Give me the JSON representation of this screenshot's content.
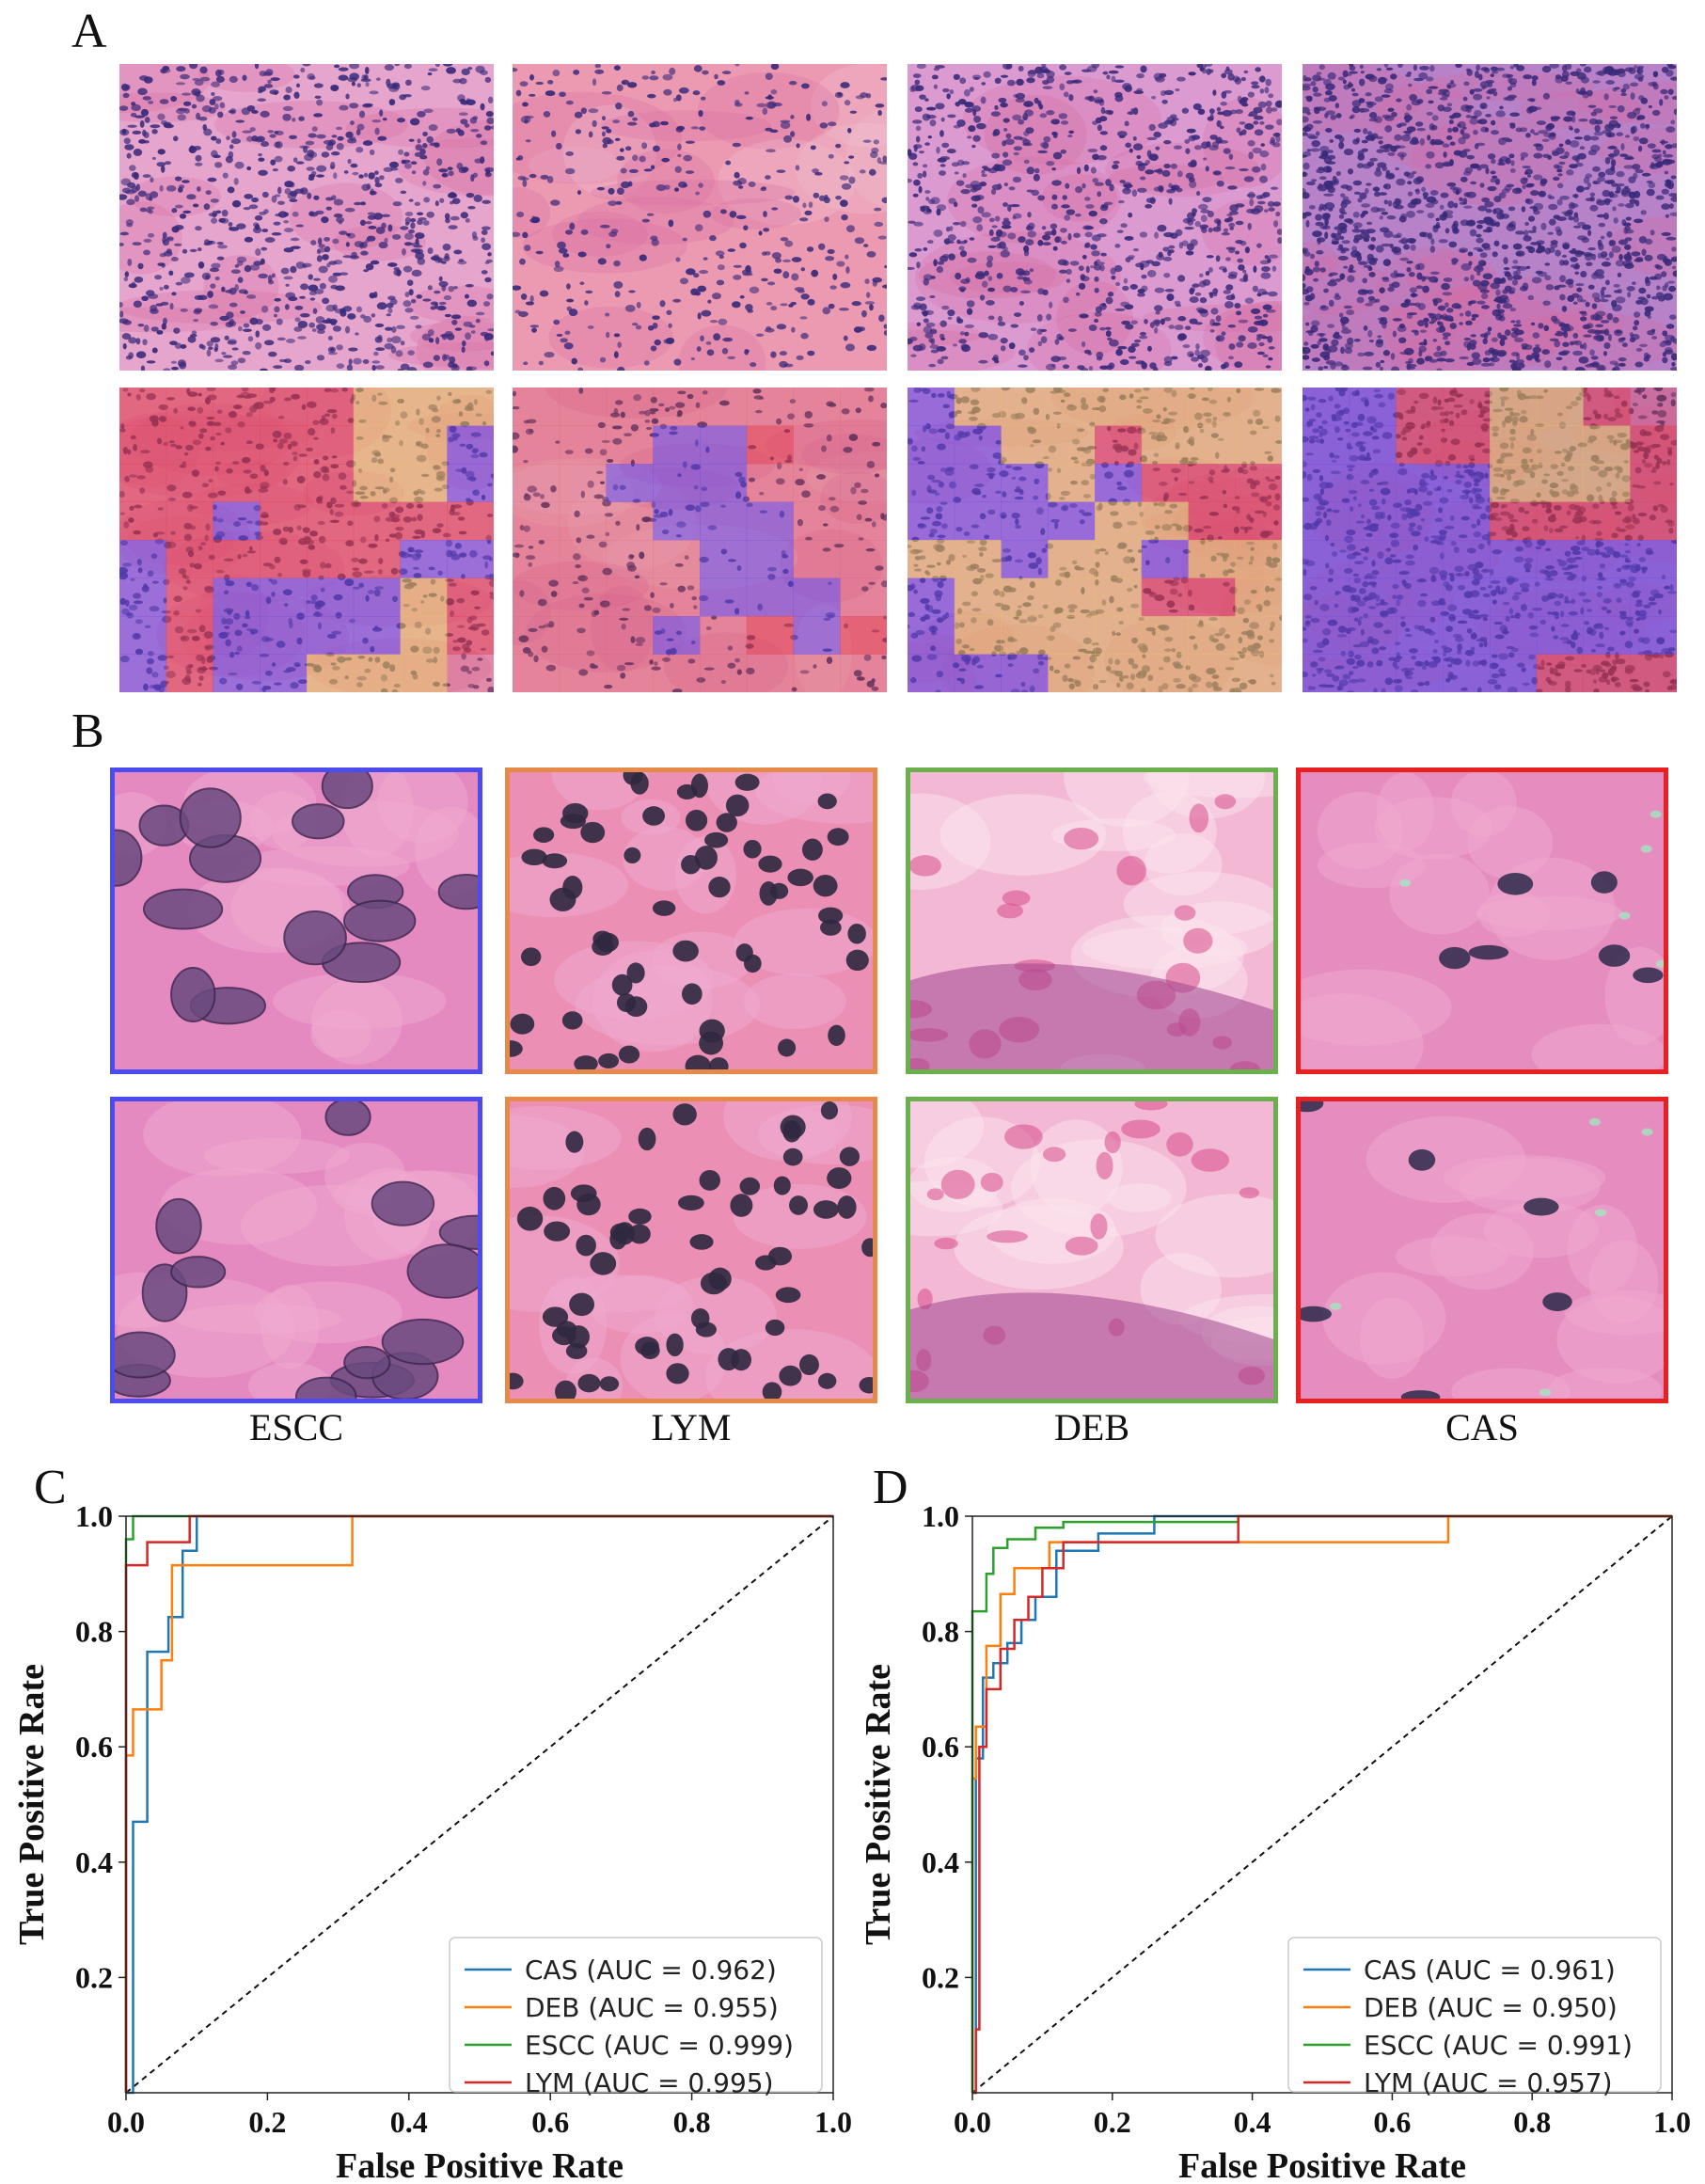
{
  "panels": {
    "a": "A",
    "b": "B",
    "c": "C",
    "d": "D"
  },
  "patch_captions": [
    "ESCC",
    "LYM",
    "DEB",
    "CAS"
  ],
  "colors": {
    "ESCC": "#4b4bf0",
    "LYM": "#e68a4a",
    "DEB": "#6ab04c",
    "CAS": "#e82020",
    "curve_CAS": "#1f77b4",
    "curve_DEB": "#ff7f0e",
    "curve_ESCC": "#2ca02c",
    "curve_LYM": "#d62728"
  },
  "chart_data": [
    {
      "type": "line",
      "panel": "C",
      "xlabel": "False Positive Rate",
      "ylabel": "True Positive Rate",
      "xlim": [
        0,
        1
      ],
      "ylim": [
        0,
        1
      ],
      "xticks": [
        "0.0",
        "0.2",
        "0.4",
        "0.6",
        "0.8",
        "1.0"
      ],
      "yticks": [
        "0.2",
        "0.4",
        "0.6",
        "0.8",
        "1.0"
      ],
      "legend_position": "lower-right",
      "diagonal": true,
      "series": [
        {
          "name": "CAS (AUC = 0.962)",
          "color": "#1f77b4",
          "x": [
            0,
            0.01,
            0.01,
            0.03,
            0.03,
            0.06,
            0.06,
            0.08,
            0.08,
            0.1,
            0.1,
            1.0
          ],
          "y": [
            0,
            0,
            0.47,
            0.47,
            0.765,
            0.765,
            0.825,
            0.825,
            0.94,
            0.94,
            1.0,
            1.0
          ]
        },
        {
          "name": "DEB (AUC = 0.955)",
          "color": "#ff7f0e",
          "x": [
            0,
            0,
            0.01,
            0.01,
            0.05,
            0.05,
            0.065,
            0.065,
            0.08,
            0.08,
            0.32,
            0.32,
            1.0
          ],
          "y": [
            0,
            0.585,
            0.585,
            0.665,
            0.665,
            0.75,
            0.75,
            0.915,
            0.915,
            0.915,
            0.915,
            1.0,
            1.0
          ]
        },
        {
          "name": "ESCC (AUC = 0.999)",
          "color": "#2ca02c",
          "x": [
            0,
            0,
            0.01,
            0.01,
            1.0
          ],
          "y": [
            0,
            0.96,
            0.96,
            1.0,
            1.0
          ]
        },
        {
          "name": "LYM (AUC = 0.995)",
          "color": "#d62728",
          "x": [
            0,
            0,
            0.03,
            0.03,
            0.09,
            0.09,
            1.0
          ],
          "y": [
            0,
            0.915,
            0.915,
            0.955,
            0.955,
            1.0,
            1.0
          ]
        }
      ]
    },
    {
      "type": "line",
      "panel": "D",
      "xlabel": "False Positive Rate",
      "ylabel": "True Positive Rate",
      "xlim": [
        0,
        1
      ],
      "ylim": [
        0,
        1
      ],
      "xticks": [
        "0.0",
        "0.2",
        "0.4",
        "0.6",
        "0.8",
        "1.0"
      ],
      "yticks": [
        "0.2",
        "0.4",
        "0.6",
        "0.8",
        "1.0"
      ],
      "legend_position": "lower-right",
      "diagonal": true,
      "series": [
        {
          "name": "CAS (AUC = 0.961)",
          "color": "#1f77b4",
          "x": [
            0,
            0.005,
            0.005,
            0.015,
            0.015,
            0.03,
            0.03,
            0.05,
            0.05,
            0.07,
            0.07,
            0.09,
            0.09,
            0.12,
            0.12,
            0.18,
            0.18,
            0.26,
            0.26,
            1.0
          ],
          "y": [
            0,
            0,
            0.58,
            0.58,
            0.72,
            0.72,
            0.745,
            0.745,
            0.78,
            0.78,
            0.82,
            0.82,
            0.86,
            0.86,
            0.94,
            0.94,
            0.97,
            0.97,
            1.0,
            1.0
          ]
        },
        {
          "name": "DEB (AUC = 0.950)",
          "color": "#ff7f0e",
          "x": [
            0,
            0,
            0.005,
            0.005,
            0.02,
            0.02,
            0.04,
            0.04,
            0.06,
            0.06,
            0.11,
            0.11,
            0.68,
            0.68,
            1.0
          ],
          "y": [
            0,
            0.545,
            0.545,
            0.635,
            0.635,
            0.775,
            0.775,
            0.865,
            0.865,
            0.91,
            0.91,
            0.955,
            0.955,
            1.0,
            1.0
          ]
        },
        {
          "name": "ESCC (AUC = 0.991)",
          "color": "#2ca02c",
          "x": [
            0,
            0,
            0.02,
            0.02,
            0.03,
            0.03,
            0.05,
            0.05,
            0.09,
            0.09,
            0.13,
            0.13,
            0.38,
            0.38,
            1.0
          ],
          "y": [
            0,
            0.835,
            0.835,
            0.9,
            0.9,
            0.945,
            0.945,
            0.96,
            0.96,
            0.98,
            0.98,
            0.99,
            0.99,
            1.0,
            1.0
          ]
        },
        {
          "name": "LYM (AUC = 0.957)",
          "color": "#d62728",
          "x": [
            0,
            0.005,
            0.005,
            0.01,
            0.01,
            0.02,
            0.02,
            0.04,
            0.04,
            0.06,
            0.06,
            0.08,
            0.08,
            0.1,
            0.1,
            0.13,
            0.13,
            0.38,
            0.38,
            1.0
          ],
          "y": [
            0,
            0,
            0.11,
            0.11,
            0.6,
            0.6,
            0.7,
            0.7,
            0.77,
            0.77,
            0.82,
            0.82,
            0.86,
            0.86,
            0.91,
            0.91,
            0.955,
            0.955,
            1.0,
            1.0
          ]
        }
      ]
    }
  ]
}
